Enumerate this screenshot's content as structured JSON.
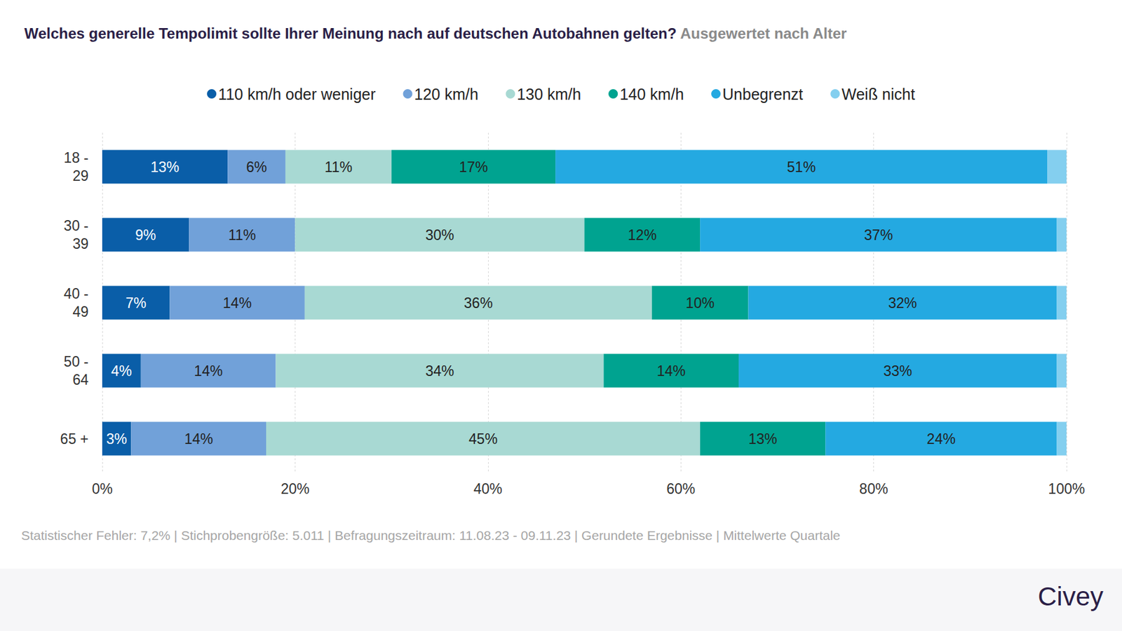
{
  "chart_data": {
    "type": "bar",
    "orientation": "horizontal",
    "stacked": true,
    "title": "Welches generelle Tempolimit sollte Ihrer Meinung nach auf deutschen Autobahnen gelten?",
    "subtitle": "Ausgewertet nach Alter",
    "footnote": "Statistischer Fehler: 7,2% | Stichprobengröße: 5.011 | Befragungszeitraum: 11.08.23 - 09.11.23 | Gerundete Ergebnisse | Mittelwerte Quartale",
    "logo": "Civey",
    "legend": "top",
    "grid": true,
    "data_labels": true,
    "categories": [
      "18 -\n29",
      "30 -\n39",
      "40 -\n49",
      "50 -\n64",
      "65 +"
    ],
    "xlim": [
      0,
      100
    ],
    "xticks": [
      {
        "value": 0,
        "label": "0%"
      },
      {
        "value": 20,
        "label": "20%"
      },
      {
        "value": 40,
        "label": "40%"
      },
      {
        "value": 60,
        "label": "60%"
      },
      {
        "value": 80,
        "label": "80%"
      },
      {
        "value": 100,
        "label": "100%"
      }
    ],
    "series": [
      {
        "name": "110 km/h oder weniger",
        "color": "#0a5ea8",
        "values": [
          13,
          9,
          7,
          4,
          3
        ],
        "value_labels": [
          "13%",
          "9%",
          "7%",
          "4%",
          "3%"
        ]
      },
      {
        "name": "120 km/h",
        "color": "#71a1d9",
        "values": [
          6,
          11,
          14,
          14,
          14
        ],
        "value_labels": [
          "6%",
          "11%",
          "14%",
          "14%",
          "14%"
        ]
      },
      {
        "name": "130 km/h",
        "color": "#a8d9d3",
        "values": [
          11,
          30,
          36,
          34,
          45
        ],
        "value_labels": [
          "11%",
          "30%",
          "36%",
          "34%",
          "45%"
        ]
      },
      {
        "name": "140 km/h",
        "color": "#00a390",
        "values": [
          17,
          12,
          10,
          14,
          13
        ],
        "value_labels": [
          "17%",
          "12%",
          "10%",
          "14%",
          "13%"
        ]
      },
      {
        "name": "Unbegrenzt",
        "color": "#24a9e1",
        "values": [
          51,
          37,
          32,
          33,
          24
        ],
        "value_labels": [
          "51%",
          "37%",
          "32%",
          "33%",
          "24%"
        ]
      },
      {
        "name": "Weiß nicht",
        "color": "#84cfef",
        "values": [
          2,
          1,
          1,
          1,
          1
        ],
        "data_labels": false
      }
    ]
  }
}
